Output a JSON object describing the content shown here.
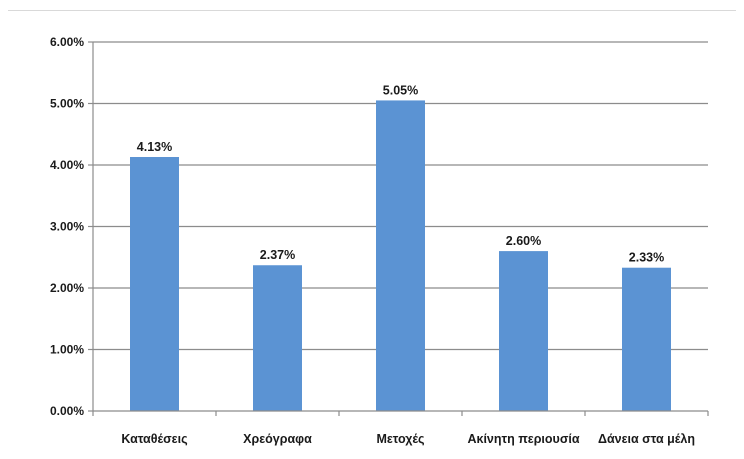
{
  "chart_data": {
    "type": "bar",
    "title": "",
    "xlabel": "",
    "ylabel": "",
    "categories": [
      "Καταθέσεις",
      "Χρεόγραφα",
      "Μετοχές",
      "Ακίνητη περιουσία",
      "Δάνεια στα μέλη"
    ],
    "values": [
      4.13,
      2.37,
      5.05,
      2.6,
      2.33
    ],
    "data_labels": [
      "4.13%",
      "2.37%",
      "5.05%",
      "2.60%",
      "2.33%"
    ],
    "ylim": [
      0,
      6
    ],
    "yticks": [
      0,
      1,
      2,
      3,
      4,
      5,
      6
    ],
    "ytick_labels": [
      "0.00%",
      "1.00%",
      "2.00%",
      "3.00%",
      "4.00%",
      "5.00%",
      "6.00%"
    ],
    "grid": true,
    "legend": "none",
    "bar_color": "#5b93d3",
    "grid_color": "#8c8c8c"
  }
}
